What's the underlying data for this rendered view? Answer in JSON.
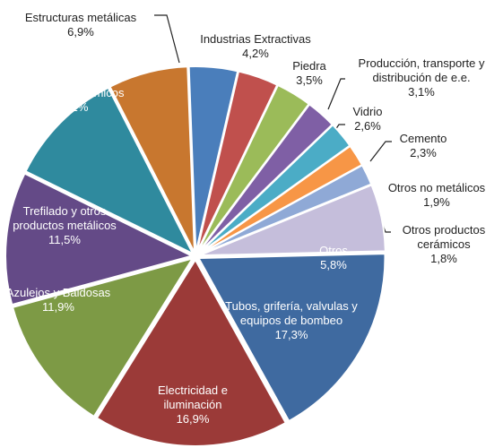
{
  "chart_data": {
    "type": "pie",
    "categories": [
      "Estructuras metálicas",
      "Industrias Extractivas",
      "Piedra",
      "Producción, transporte y distribución de e.e.",
      "Vidrio",
      "Cemento",
      "Otros no metálicos",
      "Otros productos cerámicos",
      "Otros",
      "Tubos, grifería, valvulas y equipos de bombeo",
      "Electricidad e iluminación",
      "Azulejos y Baldosas",
      "Trefilado y otros productos metálicos",
      "Productos Químicos"
    ],
    "values": [
      6.9,
      4.2,
      3.5,
      3.1,
      2.6,
      2.3,
      1.9,
      1.8,
      5.8,
      17.3,
      16.9,
      11.9,
      11.5,
      10.2
    ],
    "value_labels": [
      "6,9%",
      "4,2%",
      "3,5%",
      "3,1%",
      "2,6%",
      "2,3%",
      "1,9%",
      "1,8%",
      "5,8%",
      "17,3%",
      "16,9%",
      "11,9%",
      "11,5%",
      "10,2%"
    ],
    "colors": [
      "#c8772f",
      "#4a7ebb",
      "#c0504d",
      "#9bbb59",
      "#7f5fa5",
      "#4bacc6",
      "#f79646",
      "#8fa9d6",
      "#c5bedb",
      "#3f6aa0",
      "#9b3a38",
      "#7d9a45",
      "#644a87",
      "#2f8a9e"
    ]
  }
}
